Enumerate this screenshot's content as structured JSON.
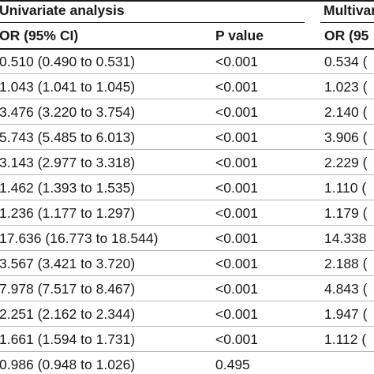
{
  "table": {
    "group_headers": {
      "univariate": "Univariate analysis",
      "multivariate": "Multivariate"
    },
    "columns": {
      "univariate_or": "OR (95% CI)",
      "univariate_p": "P value",
      "multivariate_or": "OR (95"
    },
    "rows": [
      {
        "or": "0.510 (0.490 to 0.531)",
        "p": "<0.001",
        "m_or": "0.534 ("
      },
      {
        "or": "1.043 (1.041 to 1.045)",
        "p": "<0.001",
        "m_or": "1.023 ("
      },
      {
        "or": "3.476 (3.220 to 3.754)",
        "p": "<0.001",
        "m_or": "2.140 ("
      },
      {
        "or": "5.743 (5.485 to 6.013)",
        "p": "<0.001",
        "m_or": "3.906 ("
      },
      {
        "or": "3.143 (2.977 to 3.318)",
        "p": "<0.001",
        "m_or": "2.229 ("
      },
      {
        "or": "1.462 (1.393 to 1.535)",
        "p": "<0.001",
        "m_or": "1.110 ("
      },
      {
        "or": "1.236 (1.177 to 1.297)",
        "p": "<0.001",
        "m_or": "1.179 ("
      },
      {
        "or": "17.636 (16.773 to 18.544)",
        "p": "<0.001",
        "m_or": "14.338"
      },
      {
        "or": "3.567 (3.421 to 3.720)",
        "p": "<0.001",
        "m_or": "2.188 ("
      },
      {
        "or": "7.978 (7.517 to 8.467)",
        "p": "<0.001",
        "m_or": "4.843 ("
      },
      {
        "or": "2.251 (2.162 to 2.344)",
        "p": "<0.001",
        "m_or": "1.947 ("
      },
      {
        "or": "1.661 (1.594 to 1.731)",
        "p": "<0.001",
        "m_or": "1.112 ("
      },
      {
        "or": "0.986 (0.948 to 1.026)",
        "p": "0.495",
        "m_or": ""
      }
    ]
  }
}
